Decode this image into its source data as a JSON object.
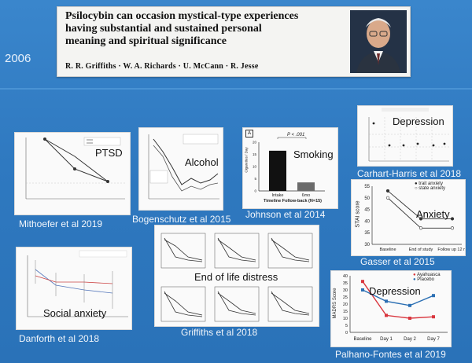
{
  "slide": {
    "year": "2006",
    "paper": {
      "title": "Psilocybin can occasion mystical-type experiences having substantial and sustained personal meaning and spiritual significance",
      "title_lines": [
        "Psilocybin can occasion mystical-type experiences",
        "having substantial and sustained personal",
        "meaning and spiritual significance"
      ],
      "authors": "R. R. Griffiths · W. A. Richards · U. McCann · R. Jesse"
    }
  },
  "panels": {
    "ptsd": {
      "label": "PTSD",
      "caption": "Mithoefer et al 2019"
    },
    "alcohol": {
      "label": "Alcohol",
      "caption": "Bogenschutz et al 2015"
    },
    "smoking": {
      "label": "Smoking",
      "caption": "Johnson et al 2014",
      "panel_letter": "A",
      "pvalue": "P < .001",
      "ylabel": "Cigarettes / Day",
      "xlabel": "Timeline Follow-back (N=15)",
      "categories": [
        "Intake",
        "6mo"
      ],
      "values": [
        16.5,
        3.5
      ],
      "yticks": [
        "20",
        "15",
        "10",
        "5",
        "0"
      ]
    },
    "depression_ch": {
      "label": "Depression",
      "caption": "Carhart-Harris et al 2018"
    },
    "anxiety": {
      "label": "Anxiety",
      "caption": "Gasser et al 2015",
      "ylabel": "STAI score",
      "legend": [
        "trait anxiety",
        "state anxiety"
      ],
      "xticks": [
        "Baseline",
        "End of study",
        "Follow up 12 m"
      ],
      "yticks": [
        "55",
        "50",
        "45",
        "40",
        "35",
        "30"
      ]
    },
    "social": {
      "label": "Social anxiety",
      "caption": "Danforth et al 2018"
    },
    "distress": {
      "label": "End of life distress",
      "caption": "Griffiths et al 2018"
    },
    "depression_pf": {
      "label": "Depression",
      "caption": "Palhano-Fontes et al 2019",
      "ylabel": "MADRS Score",
      "legend": [
        "Ayahuasca",
        "Placebo"
      ],
      "xticks": [
        "Baseline",
        "Day 1",
        "Day 2",
        "Day 7"
      ],
      "yticks": [
        "40",
        "35",
        "30",
        "25",
        "20",
        "15",
        "10",
        "5",
        "0"
      ]
    }
  },
  "colors": {
    "background": "#2f7bc2",
    "ayahuasca": "#d9363e",
    "placebo": "#2b6fb3"
  },
  "chart_data": [
    {
      "type": "bar",
      "title": "Smoking",
      "categories": [
        "Intake",
        "6mo"
      ],
      "values": [
        16.5,
        3.5
      ],
      "ylabel": "Cigarettes / Day",
      "xlabel": "Timeline Follow-back (N=15)",
      "ylim": [
        0,
        20
      ]
    },
    {
      "type": "line",
      "title": "Anxiety",
      "categories": [
        "Baseline",
        "End of study",
        "Follow up 12 m"
      ],
      "series": [
        {
          "name": "trait anxiety",
          "values": [
            53,
            41,
            41
          ]
        },
        {
          "name": "state anxiety",
          "values": [
            50,
            37,
            37
          ]
        }
      ],
      "ylabel": "STAI score",
      "ylim": [
        30,
        55
      ]
    },
    {
      "type": "line",
      "title": "Depression",
      "categories": [
        "Baseline",
        "Day 1",
        "Day 2",
        "Day 7"
      ],
      "series": [
        {
          "name": "Ayahuasca",
          "values": [
            36,
            12,
            10,
            11
          ]
        },
        {
          "name": "Placebo",
          "values": [
            30,
            22,
            19,
            26
          ]
        }
      ],
      "ylabel": "MADRS Score",
      "ylim": [
        0,
        40
      ]
    }
  ]
}
